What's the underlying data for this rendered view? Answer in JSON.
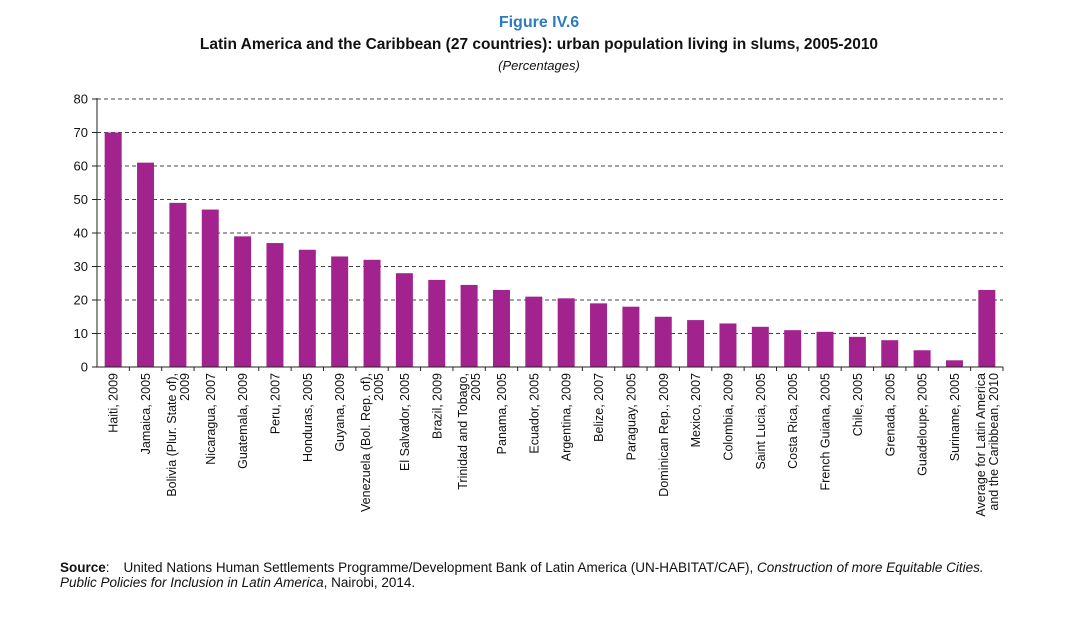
{
  "figure_label": "Figure IV.6",
  "title": "Latin America and the Caribbean (27 countries): urban population living in slums, 2005-2010",
  "subtitle": "(Percentages)",
  "source": {
    "label": "Source",
    "text_a": "United Nations Human Settlements Programme/Development Bank of Latin America (UN-HABITAT/CAF), ",
    "text_italic": "Construction of more Equitable Cities. Public Policies for Inclusion in Latin America",
    "text_b": ", Nairobi, 2014."
  },
  "colors": {
    "bar": "#a3238e",
    "grid": "#444444",
    "figure_label": "#2d7bbf"
  },
  "chart_data": {
    "type": "bar",
    "title": "Latin America and the Caribbean (27 countries): urban population living in slums, 2005-2010",
    "subtitle": "(Percentages)",
    "categories": [
      [
        "Haiti, 2009"
      ],
      [
        "Jamaica, 2005"
      ],
      [
        "Bolivia (Plur. State of),",
        "2009"
      ],
      [
        "Nicaragua, 2007"
      ],
      [
        "Guatemala, 2009"
      ],
      [
        "Peru, 2007"
      ],
      [
        "Honduras, 2005"
      ],
      [
        "Guyana, 2009"
      ],
      [
        "Venezuela (Bol. Rep. of),",
        "2005"
      ],
      [
        "El Salvador, 2005"
      ],
      [
        "Brazil, 2009"
      ],
      [
        "Trinidad and Tobago,",
        "2005"
      ],
      [
        "Panama, 2005"
      ],
      [
        "Ecuador, 2005"
      ],
      [
        "Argentina, 2009"
      ],
      [
        "Belize, 2007"
      ],
      [
        "Paraguay, 2005"
      ],
      [
        "Dominican Rep., 2009"
      ],
      [
        "Mexico, 2007"
      ],
      [
        "Colombia, 2009"
      ],
      [
        "Saint Lucia, 2005"
      ],
      [
        "Costa Rica, 2005"
      ],
      [
        "French Guiana, 2005"
      ],
      [
        "Chile, 2005"
      ],
      [
        "Grenada, 2005"
      ],
      [
        "Guadeloupe, 2005"
      ],
      [
        "Suriname, 2005"
      ],
      [
        "Average for Latin America",
        "and the Caribbean, 2010"
      ]
    ],
    "values": [
      70,
      61,
      49,
      47,
      39,
      37,
      35,
      33,
      32,
      28,
      26,
      24.5,
      23,
      21,
      20.5,
      19,
      18,
      15,
      14,
      13,
      12,
      11,
      10.5,
      9,
      8,
      5,
      2,
      23
    ],
    "ylim": [
      0,
      80
    ],
    "yticks": [
      0,
      10,
      20,
      30,
      40,
      50,
      60,
      70,
      80
    ],
    "xlabel": "",
    "ylabel": "",
    "grid": "horizontal dashed",
    "legend": "none"
  }
}
